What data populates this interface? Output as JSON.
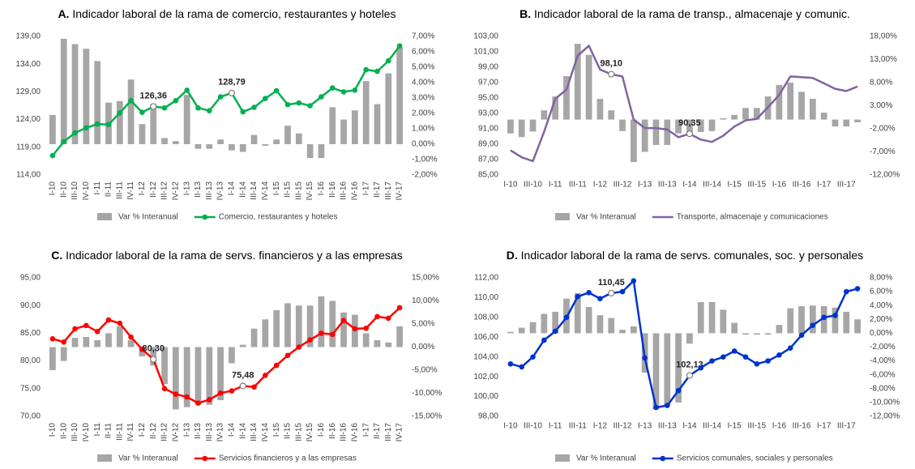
{
  "chart_data": [
    {
      "type": "combo",
      "panel": "A.",
      "title": "Indicador laboral de la rama de comercio, restaurantes y hoteles",
      "categories": [
        "I-10",
        "II-10",
        "III-10",
        "IV-10",
        "I-11",
        "II-11",
        "III-11",
        "IV-11",
        "I-12",
        "II-12",
        "III-12",
        "IV-12",
        "I-13",
        "II-13",
        "III-13",
        "IV-13",
        "I-14",
        "II-14",
        "III-14",
        "IV-14",
        "I-15",
        "II-15",
        "III-15",
        "IV-15",
        "I-16",
        "II-16",
        "III-16",
        "IV-16",
        "I-17",
        "II-17",
        "III-17",
        "IV-17"
      ],
      "ylim": [
        114,
        139
      ],
      "yticks": [
        {
          "value": 114,
          "label": "114,00"
        },
        {
          "value": 119,
          "label": "119,00"
        },
        {
          "value": 124,
          "label": "124,00"
        },
        {
          "value": 129,
          "label": "129,00"
        },
        {
          "value": 134,
          "label": "134,00"
        },
        {
          "value": 139,
          "label": "139,00"
        }
      ],
      "y2lim": [
        -2,
        7
      ],
      "y2ticks": [
        {
          "value": -2,
          "label": "-2,00%"
        },
        {
          "value": -1,
          "label": "-1,00%"
        },
        {
          "value": 0,
          "label": "0,00%"
        },
        {
          "value": 1,
          "label": "1,00%"
        },
        {
          "value": 2,
          "label": "2,00%"
        },
        {
          "value": 3,
          "label": "3,00%"
        },
        {
          "value": 4,
          "label": "4,00%"
        },
        {
          "value": 5,
          "label": "5,00%"
        },
        {
          "value": 6,
          "label": "6,00%"
        },
        {
          "value": 7,
          "label": "7,00%"
        }
      ],
      "series": [
        {
          "name": "Var % Interanual",
          "type": "bar",
          "axis": "y2",
          "color": "#a6a6a6",
          "values": [
            1.9,
            6.85,
            6.5,
            6.2,
            5.4,
            2.7,
            2.8,
            4.2,
            1.3,
            2.6,
            0.4,
            0.2,
            3.2,
            -0.3,
            -0.3,
            0.3,
            -0.4,
            -0.5,
            0.6,
            -0.1,
            0.3,
            1.2,
            0.7,
            -0.9,
            -0.9,
            2.4,
            1.6,
            2.2,
            4.1,
            2.6,
            4.6,
            6.3
          ]
        },
        {
          "name": "Comercio, restaurantes y hoteles",
          "type": "line",
          "color": "#00b050",
          "markers": true,
          "values": [
            117.5,
            120,
            121.6,
            122.5,
            123.2,
            123.1,
            125.2,
            127.4,
            125.3,
            126.36,
            126.1,
            127.4,
            129.3,
            126.1,
            125.6,
            128.1,
            128.79,
            125.4,
            126.2,
            127.8,
            129.2,
            126.7,
            127,
            126.5,
            128.1,
            129.7,
            129,
            129.3,
            133,
            132.7,
            134.6,
            137.3
          ],
          "value_labels": [
            null,
            null,
            null,
            null,
            null,
            null,
            null,
            null,
            null,
            "126,36",
            null,
            null,
            null,
            null,
            null,
            null,
            "128,79",
            null,
            null,
            null,
            null,
            null,
            null,
            null,
            null,
            null,
            null,
            null,
            null,
            null,
            null,
            null
          ]
        }
      ]
    },
    {
      "type": "combo",
      "panel": "B.",
      "title": "Indicador laboral de la rama de transp., almacenaje y comunic.",
      "categories": [
        "I-10",
        null,
        "III-10",
        null,
        "I-11",
        null,
        "III-11",
        null,
        "I-12",
        null,
        "III-12",
        null,
        "I-13",
        null,
        "III-13",
        null,
        "I-14",
        null,
        "III-14",
        null,
        "I-15",
        null,
        "III-15",
        null,
        "I-16",
        null,
        "III-16",
        null,
        "I-17",
        null,
        "III-17",
        null
      ],
      "ylim": [
        85,
        103
      ],
      "yticks": [
        {
          "value": 85,
          "label": "85,00"
        },
        {
          "value": 87,
          "label": "87,00"
        },
        {
          "value": 89,
          "label": "89,00"
        },
        {
          "value": 91,
          "label": "91,00"
        },
        {
          "value": 93,
          "label": "93,00"
        },
        {
          "value": 95,
          "label": "95,00"
        },
        {
          "value": 97,
          "label": "97,00"
        },
        {
          "value": 99,
          "label": "99,00"
        },
        {
          "value": 101,
          "label": "101,00"
        },
        {
          "value": 103,
          "label": "103,00"
        }
      ],
      "y2lim": [
        -12,
        18
      ],
      "y2ticks": [
        {
          "value": -12,
          "label": "-12,00%"
        },
        {
          "value": -7,
          "label": "-7,00%"
        },
        {
          "value": -2,
          "label": "-2,00%"
        },
        {
          "value": 3,
          "label": "3,00%"
        },
        {
          "value": 8,
          "label": "8,00%"
        },
        {
          "value": 13,
          "label": "13,00%"
        },
        {
          "value": 18,
          "label": "18,00%"
        }
      ],
      "series": [
        {
          "name": "Var % Interanual",
          "type": "bar",
          "axis": "y2",
          "color": "#a6a6a6",
          "values": [
            -3,
            -3.8,
            -2.6,
            2,
            5,
            9.4,
            16.4,
            14,
            4.5,
            2,
            -2.5,
            -9.2,
            -7,
            -5.5,
            -5.5,
            -3,
            -3,
            -2.7,
            -2.5,
            0.3,
            1,
            2.5,
            2.5,
            5,
            7.5,
            8,
            6,
            4.5,
            1.5,
            -1.5,
            -1.5,
            -0.6
          ]
        },
        {
          "name": "Transporte, almacenaje y comunicaciones",
          "type": "line",
          "color": "#8064a2",
          "markers": false,
          "values": [
            88.2,
            87.3,
            86.8,
            90.6,
            94.9,
            96.1,
            100.5,
            101.8,
            98.7,
            98.1,
            97.8,
            92.2,
            91.1,
            91.1,
            90.9,
            89.9,
            90.35,
            89.6,
            89.3,
            90.1,
            91.3,
            92.1,
            92.3,
            93.8,
            95.4,
            97.8,
            97.7,
            97.6,
            96.9,
            96.2,
            95.9,
            96.5
          ],
          "value_labels": [
            null,
            null,
            null,
            null,
            null,
            null,
            null,
            null,
            null,
            "98,10",
            null,
            null,
            null,
            null,
            null,
            null,
            "90,35",
            null,
            null,
            null,
            null,
            null,
            null,
            null,
            null,
            null,
            null,
            null,
            null,
            null,
            null,
            null
          ]
        }
      ]
    },
    {
      "type": "combo",
      "panel": "C.",
      "title": "Indicador laboral de la rama de servs. financieros y a las empresas",
      "categories": [
        "I-10",
        "II-10",
        "III-10",
        "IV-10",
        "I-11",
        "II-11",
        "III-11",
        "IV-11",
        "I-12",
        "II-12",
        "III-12",
        "IV-12",
        "I-13",
        "II-13",
        "III-13",
        "IV-13",
        "I-14",
        "II-14",
        "III-14",
        "IV-14",
        "I-15",
        "II-15",
        "III-15",
        "IV-15",
        "I-16",
        "II-16",
        "III-16",
        "IV-16",
        "I-17",
        "II-17",
        "III-17",
        "IV-17"
      ],
      "ylim": [
        70,
        95
      ],
      "yticks": [
        {
          "value": 70,
          "label": "70,00"
        },
        {
          "value": 75,
          "label": "75,00"
        },
        {
          "value": 80,
          "label": "80,00"
        },
        {
          "value": 85,
          "label": "85,00"
        },
        {
          "value": 90,
          "label": "90,00"
        },
        {
          "value": 95,
          "label": "95,00"
        }
      ],
      "y2lim": [
        -15,
        15
      ],
      "y2ticks": [
        {
          "value": -15,
          "label": "-15,00%"
        },
        {
          "value": -10,
          "label": "-10,00%"
        },
        {
          "value": -5,
          "label": "-5,00%"
        },
        {
          "value": 0,
          "label": "0,00%"
        },
        {
          "value": 5,
          "label": "5,00%"
        },
        {
          "value": 10,
          "label": "10,00%"
        },
        {
          "value": 15,
          "label": "15,00%"
        }
      ],
      "series": [
        {
          "name": "Var % Interanual",
          "type": "bar",
          "axis": "y2",
          "color": "#a6a6a6",
          "values": [
            -5,
            -3,
            2,
            2.2,
            1.5,
            3,
            4.5,
            1.5,
            -2,
            -4,
            -8,
            -13.5,
            -13,
            -12.5,
            -12.5,
            -11.5,
            -3.5,
            0.5,
            4,
            6,
            8,
            9.5,
            9,
            9,
            11,
            10,
            7.5,
            7,
            3,
            1.5,
            1,
            4.5
          ]
        },
        {
          "name": "Servicios financieros y a las empresas",
          "type": "line",
          "color": "#ff0000",
          "markers": true,
          "values": [
            84,
            83.4,
            85.8,
            86.4,
            85.3,
            87.4,
            86.8,
            84.3,
            82.1,
            80.3,
            75,
            74,
            73.5,
            72.4,
            73,
            74.2,
            74.6,
            75.48,
            75.3,
            77.4,
            79.2,
            81,
            82.5,
            83.8,
            85,
            84.8,
            87.3,
            85.8,
            85.9,
            88,
            87.7,
            89.6
          ],
          "value_labels": [
            null,
            null,
            null,
            null,
            null,
            null,
            null,
            null,
            null,
            "80,30",
            null,
            null,
            null,
            null,
            null,
            null,
            null,
            "75,48",
            null,
            null,
            null,
            null,
            null,
            null,
            null,
            null,
            null,
            null,
            null,
            null,
            null,
            null
          ]
        }
      ]
    },
    {
      "type": "combo",
      "panel": "D.",
      "title": "Indicador laboral de la rama de servs. comunales, soc. y personales",
      "categories": [
        "I-10",
        null,
        "III-10",
        null,
        "I-11",
        null,
        "III-11",
        null,
        "I-12",
        null,
        "III-12",
        null,
        "I-13",
        null,
        "III-13",
        null,
        "I-14",
        null,
        "III-14",
        null,
        "I-15",
        null,
        "III-15",
        null,
        "I-16",
        null,
        "III-16",
        null,
        "I-17",
        null,
        "III-17",
        null
      ],
      "ylim": [
        98,
        112
      ],
      "yticks": [
        {
          "value": 98,
          "label": "98,00"
        },
        {
          "value": 100,
          "label": "100,00"
        },
        {
          "value": 102,
          "label": "102,00"
        },
        {
          "value": 104,
          "label": "104,00"
        },
        {
          "value": 106,
          "label": "106,00"
        },
        {
          "value": 108,
          "label": "108,00"
        },
        {
          "value": 110,
          "label": "110,00"
        },
        {
          "value": 112,
          "label": "112,00"
        }
      ],
      "y2lim": [
        -12,
        8
      ],
      "y2ticks": [
        {
          "value": -12,
          "label": "-12,00%"
        },
        {
          "value": -10,
          "label": "-10,00%"
        },
        {
          "value": -8,
          "label": "-8,00%"
        },
        {
          "value": -6,
          "label": "-6,00%"
        },
        {
          "value": -4,
          "label": "-4,00%"
        },
        {
          "value": -2,
          "label": "-2,00%"
        },
        {
          "value": 0,
          "label": "0,00%"
        },
        {
          "value": 2,
          "label": "2,00%"
        },
        {
          "value": 4,
          "label": "4,00%"
        },
        {
          "value": 6,
          "label": "6,00%"
        },
        {
          "value": 8,
          "label": "8,00%"
        }
      ],
      "series": [
        {
          "name": "Var % Interanual",
          "type": "bar",
          "axis": "y2",
          "color": "#a6a6a6",
          "values": [
            0.2,
            0.8,
            1.6,
            2.8,
            3.1,
            5,
            5.8,
            3.8,
            2.6,
            2.2,
            0.5,
            1,
            -5.7,
            -11,
            -10.5,
            -10,
            -1.5,
            4.5,
            4.5,
            3.4,
            1.5,
            -0.2,
            -0.2,
            -0.2,
            1.2,
            3.6,
            3.9,
            4,
            3.9,
            3.7,
            3.1,
            2
          ]
        },
        {
          "name": "Servicios comunales, sociales y personales",
          "type": "line",
          "color": "#0033cc",
          "markers": true,
          "values": [
            103.3,
            103,
            104,
            105.7,
            106.6,
            108,
            110.1,
            110.5,
            109.9,
            110.45,
            110.6,
            111.7,
            103.9,
            98.9,
            99.1,
            100.6,
            102.13,
            102.9,
            103.6,
            104,
            104.6,
            104,
            103.3,
            103.6,
            104.2,
            104.9,
            106.2,
            107.2,
            108,
            108.2,
            110.6,
            110.9
          ],
          "value_labels": [
            null,
            null,
            null,
            null,
            null,
            null,
            null,
            null,
            null,
            "110,45",
            null,
            null,
            null,
            null,
            null,
            null,
            "102,13",
            null,
            null,
            null,
            null,
            null,
            null,
            null,
            null,
            null,
            null,
            null,
            null,
            null,
            null,
            null
          ]
        }
      ]
    }
  ]
}
